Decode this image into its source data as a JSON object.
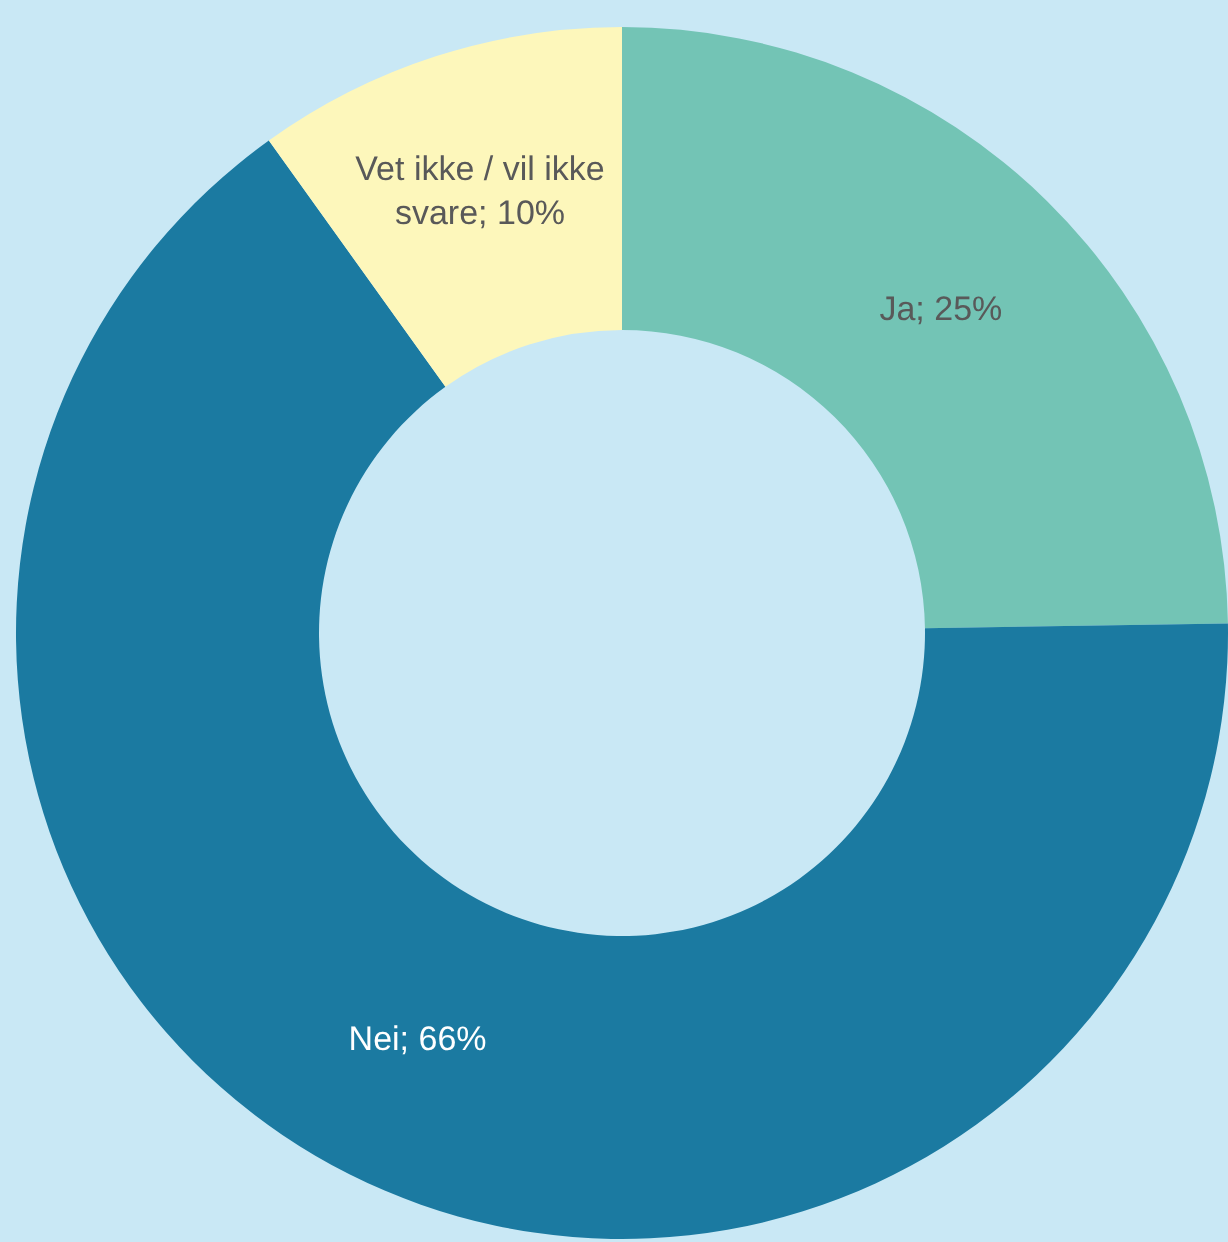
{
  "chart_data": {
    "type": "donut",
    "categories": [
      "Ja",
      "Nei",
      "Vet ikke / vil ikke svare"
    ],
    "values": [
      25,
      66,
      10
    ],
    "colors": [
      "#73c4b5",
      "#1b7aa1",
      "#fdf7bb"
    ],
    "value_labels": [
      "25%",
      "66%",
      "10%"
    ],
    "legend": false
  }
}
